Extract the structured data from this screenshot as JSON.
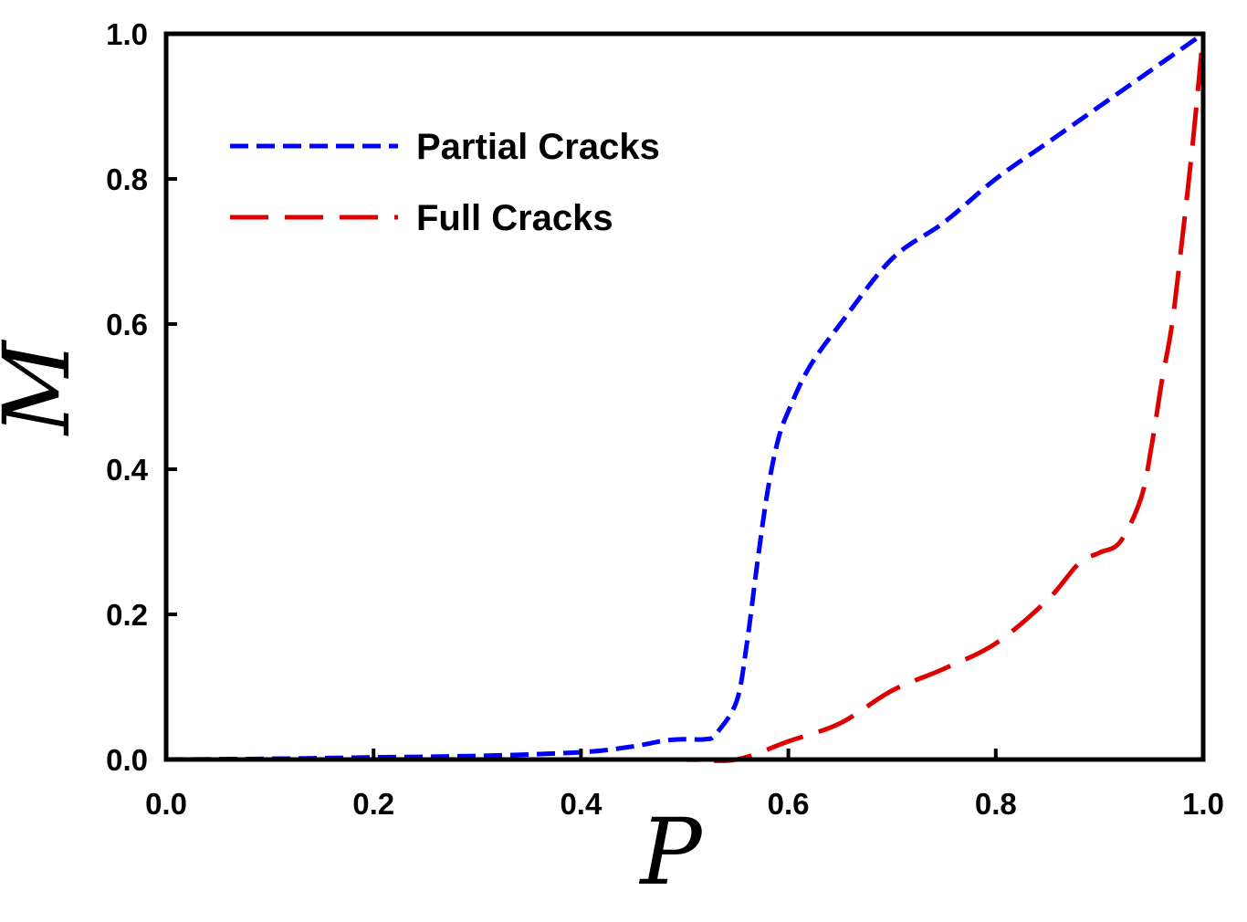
{
  "chart_data": {
    "type": "line",
    "xlabel": "P",
    "ylabel": "M",
    "xlim": [
      0.0,
      1.0
    ],
    "ylim": [
      0.0,
      1.0
    ],
    "xticks": [
      "0.0",
      "0.2",
      "0.4",
      "0.6",
      "0.8",
      "1.0"
    ],
    "yticks": [
      "0.0",
      "0.2",
      "0.4",
      "0.6",
      "0.8",
      "1.0"
    ],
    "grid": false,
    "legend_position": "top-left",
    "series": [
      {
        "name": "Partial Cracks",
        "color": "#0000ff",
        "dash": "short-dash",
        "x": [
          0.0,
          0.1,
          0.2,
          0.3,
          0.4,
          0.45,
          0.48,
          0.5,
          0.52,
          0.53,
          0.55,
          0.56,
          0.57,
          0.58,
          0.59,
          0.6,
          0.62,
          0.65,
          0.7,
          0.75,
          0.8,
          0.85,
          0.9,
          0.95,
          1.0
        ],
        "y": [
          0.0,
          0.001,
          0.003,
          0.005,
          0.01,
          0.018,
          0.026,
          0.028,
          0.028,
          0.035,
          0.08,
          0.16,
          0.27,
          0.37,
          0.44,
          0.48,
          0.54,
          0.6,
          0.69,
          0.74,
          0.8,
          0.85,
          0.9,
          0.95,
          1.0
        ]
      },
      {
        "name": "Full Cracks",
        "color": "#dd0000",
        "dash": "long-dash",
        "x": [
          0.0,
          0.1,
          0.2,
          0.3,
          0.4,
          0.5,
          0.55,
          0.6,
          0.65,
          0.7,
          0.75,
          0.8,
          0.85,
          0.88,
          0.9,
          0.92,
          0.94,
          0.95,
          0.96,
          0.97,
          0.98,
          0.99,
          1.0
        ],
        "y": [
          0.0,
          0.0,
          0.0,
          0.0,
          0.0,
          0.0,
          0.0,
          0.025,
          0.05,
          0.095,
          0.125,
          0.16,
          0.22,
          0.27,
          0.285,
          0.3,
          0.36,
          0.43,
          0.52,
          0.6,
          0.72,
          0.85,
          1.0
        ]
      }
    ]
  }
}
